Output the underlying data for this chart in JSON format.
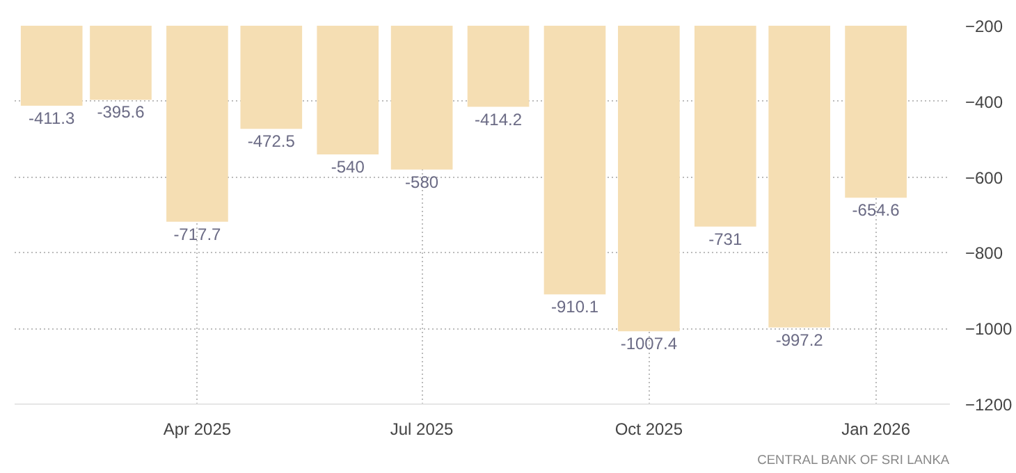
{
  "chart_data": {
    "type": "bar",
    "x": [
      "2025-02",
      "2025-03",
      "2025-04",
      "2025-05",
      "2025-06",
      "2025-07",
      "2025-08",
      "2025-09",
      "2025-10",
      "2025-11",
      "2025-12",
      "2026-01"
    ],
    "values": [
      -411.3,
      -395.6,
      -717.7,
      -472.5,
      -540,
      -580,
      -414.2,
      -910.1,
      -1007.4,
      -731,
      -997.2,
      -654.6
    ],
    "color": "#f5deb3",
    "data_labels": true,
    "xlim": [
      "2025-01-17",
      "2026-01-31"
    ],
    "xticks": [
      {
        "value": "2025-04-01",
        "label": "Apr 2025"
      },
      {
        "value": "2025-07-01",
        "label": "Jul 2025"
      },
      {
        "value": "2025-10-01",
        "label": "Oct 2025"
      },
      {
        "value": "2026-01-01",
        "label": "Jan 2026"
      }
    ],
    "ylim": [
      -1200,
      -200
    ],
    "yticks": [
      -200,
      -400,
      -600,
      -800,
      -1000,
      -1200
    ],
    "grid": true,
    "annotations": [
      "CENTRAL BANK OF SRI LANKA"
    ]
  }
}
